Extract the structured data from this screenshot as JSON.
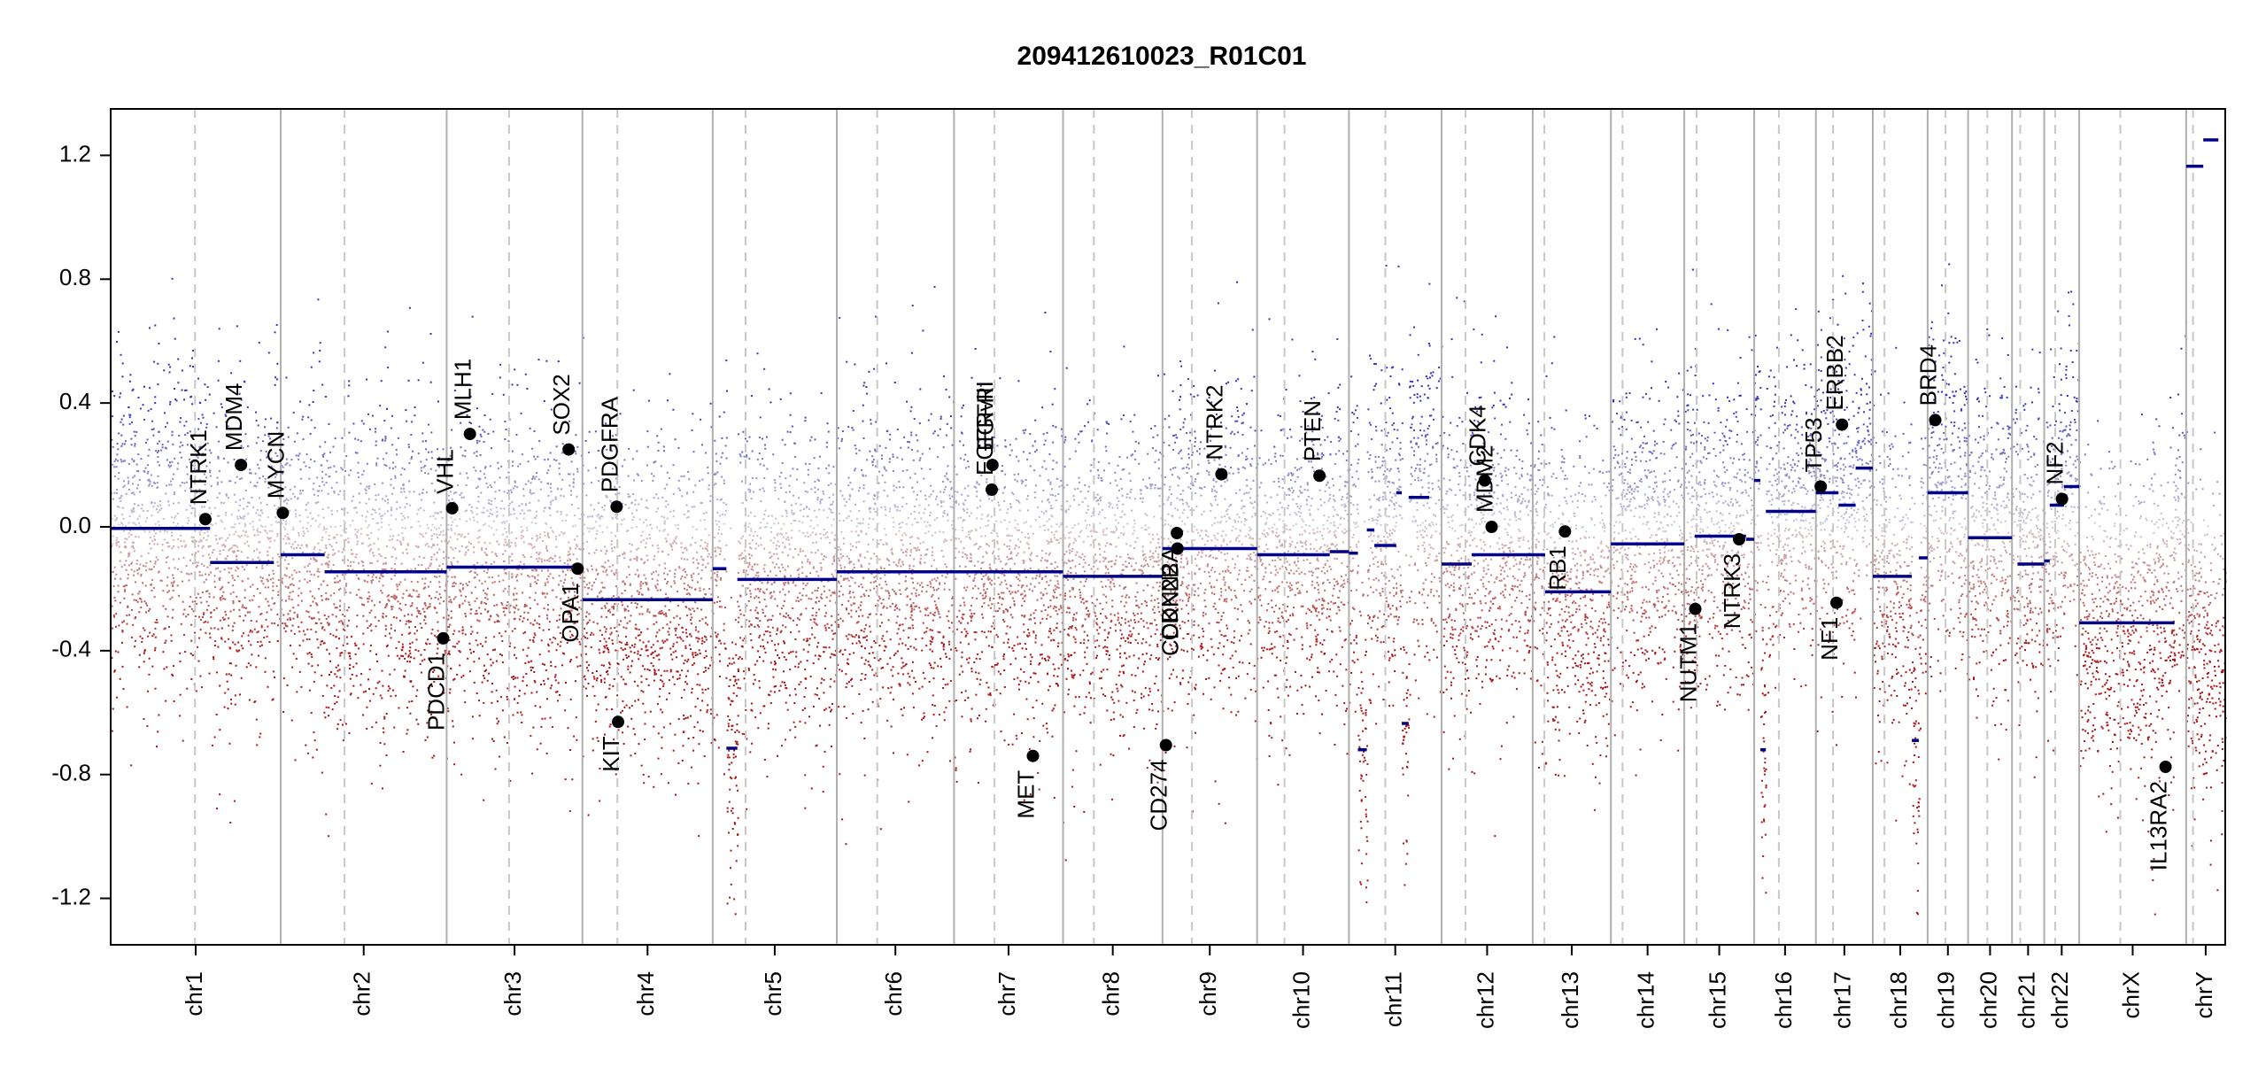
{
  "chart_data": {
    "type": "scatter",
    "title": "209412610023_R01C01",
    "xlabel": "",
    "ylabel": "",
    "ylim": [
      -1.35,
      1.35
    ],
    "y_ticks": [
      -1.2,
      -0.8,
      -0.4,
      0.0,
      0.4,
      0.8,
      1.2
    ],
    "y_tick_labels": [
      "-1.2",
      "-0.8",
      "-0.4",
      "0.0",
      "0.4",
      "0.8",
      "1.2"
    ],
    "colors": {
      "gain_points": "#3b3bb8",
      "loss_points": "#b22222",
      "segment": "#00008b",
      "gene_marker": "#000000",
      "chrom_boundary": "#b0b0b0",
      "centromere": "#c8c8c8"
    },
    "chromosomes": [
      {
        "name": "chr1",
        "start": 0,
        "end": 248,
        "cen": 123
      },
      {
        "name": "chr2",
        "start": 248,
        "end": 490,
        "cen": 341
      },
      {
        "name": "chr3",
        "start": 490,
        "end": 688,
        "cen": 581
      },
      {
        "name": "chr4",
        "start": 688,
        "end": 878,
        "cen": 739
      },
      {
        "name": "chr5",
        "start": 878,
        "end": 1059,
        "cen": 926
      },
      {
        "name": "chr6",
        "start": 1059,
        "end": 1230,
        "cen": 1118
      },
      {
        "name": "chr7",
        "start": 1230,
        "end": 1389,
        "cen": 1289
      },
      {
        "name": "chr8",
        "start": 1389,
        "end": 1534,
        "cen": 1434
      },
      {
        "name": "chr9",
        "start": 1534,
        "end": 1672,
        "cen": 1577
      },
      {
        "name": "chr10",
        "start": 1672,
        "end": 1806,
        "cen": 1712
      },
      {
        "name": "chr11",
        "start": 1806,
        "end": 1941,
        "cen": 1859
      },
      {
        "name": "chr12",
        "start": 1941,
        "end": 2074,
        "cen": 1976
      },
      {
        "name": "chr13",
        "start": 2074,
        "end": 2188,
        "cen": 2091
      },
      {
        "name": "chr14",
        "start": 2188,
        "end": 2295,
        "cen": 2205
      },
      {
        "name": "chr15",
        "start": 2295,
        "end": 2397,
        "cen": 2313
      },
      {
        "name": "chr16",
        "start": 2397,
        "end": 2487,
        "cen": 2433
      },
      {
        "name": "chr17",
        "start": 2487,
        "end": 2570,
        "cen": 2512
      },
      {
        "name": "chr18",
        "start": 2570,
        "end": 2650,
        "cen": 2587
      },
      {
        "name": "chr19",
        "start": 2650,
        "end": 2709,
        "cen": 2676
      },
      {
        "name": "chr20",
        "start": 2709,
        "end": 2773,
        "cen": 2737
      },
      {
        "name": "chr21",
        "start": 2773,
        "end": 2820,
        "cen": 2785
      },
      {
        "name": "chr22",
        "start": 2820,
        "end": 2871,
        "cen": 2836
      },
      {
        "name": "chrX",
        "start": 2871,
        "end": 3027,
        "cen": 2931
      },
      {
        "name": "chrY",
        "start": 3027,
        "end": 3084,
        "cen": 3037
      }
    ],
    "segments": [
      {
        "x0": 0,
        "x1": 145,
        "y": -0.005
      },
      {
        "x0": 145,
        "x1": 238,
        "y": -0.115
      },
      {
        "x0": 248,
        "x1": 312,
        "y": -0.09
      },
      {
        "x0": 312,
        "x1": 490,
        "y": -0.145
      },
      {
        "x0": 490,
        "x1": 688,
        "y": -0.13
      },
      {
        "x0": 688,
        "x1": 878,
        "y": -0.235
      },
      {
        "x0": 878,
        "x1": 898,
        "y": -0.135
      },
      {
        "x0": 898,
        "x1": 914,
        "y": -0.715
      },
      {
        "x0": 914,
        "x1": 1059,
        "y": -0.17
      },
      {
        "x0": 1059,
        "x1": 1389,
        "y": -0.145
      },
      {
        "x0": 1389,
        "x1": 1534,
        "y": -0.16
      },
      {
        "x0": 1534,
        "x1": 1672,
        "y": -0.07
      },
      {
        "x0": 1672,
        "x1": 1778,
        "y": -0.09
      },
      {
        "x0": 1778,
        "x1": 1806,
        "y": -0.08
      },
      {
        "x0": 1806,
        "x1": 1819,
        "y": -0.085
      },
      {
        "x0": 1819,
        "x1": 1832,
        "y": -0.72
      },
      {
        "x0": 1832,
        "x1": 1843,
        "y": -0.01
      },
      {
        "x0": 1843,
        "x1": 1875,
        "y": -0.06
      },
      {
        "x0": 1875,
        "x1": 1883,
        "y": 0.11
      },
      {
        "x0": 1883,
        "x1": 1893,
        "y": -0.635
      },
      {
        "x0": 1893,
        "x1": 1923,
        "y": 0.095
      },
      {
        "x0": 1941,
        "x1": 1985,
        "y": -0.12
      },
      {
        "x0": 1985,
        "x1": 2074,
        "y": -0.09
      },
      {
        "x0": 2074,
        "x1": 2092,
        "y": -0.09
      },
      {
        "x0": 2092,
        "x1": 2188,
        "y": -0.21
      },
      {
        "x0": 2188,
        "x1": 2295,
        "y": -0.055
      },
      {
        "x0": 2310,
        "x1": 2385,
        "y": -0.03
      },
      {
        "x0": 2385,
        "x1": 2397,
        "y": -0.04
      },
      {
        "x0": 2397,
        "x1": 2406,
        "y": 0.15
      },
      {
        "x0": 2406,
        "x1": 2414,
        "y": -0.72
      },
      {
        "x0": 2414,
        "x1": 2487,
        "y": 0.05
      },
      {
        "x0": 2487,
        "x1": 2520,
        "y": 0.11
      },
      {
        "x0": 2520,
        "x1": 2545,
        "y": 0.07
      },
      {
        "x0": 2545,
        "x1": 2570,
        "y": 0.19
      },
      {
        "x0": 2570,
        "x1": 2627,
        "y": -0.16
      },
      {
        "x0": 2627,
        "x1": 2637,
        "y": -0.69
      },
      {
        "x0": 2637,
        "x1": 2650,
        "y": -0.1
      },
      {
        "x0": 2650,
        "x1": 2709,
        "y": 0.11
      },
      {
        "x0": 2709,
        "x1": 2773,
        "y": -0.035
      },
      {
        "x0": 2781,
        "x1": 2820,
        "y": -0.12
      },
      {
        "x0": 2820,
        "x1": 2828,
        "y": -0.11
      },
      {
        "x0": 2828,
        "x1": 2849,
        "y": 0.07
      },
      {
        "x0": 2849,
        "x1": 2871,
        "y": 0.13
      },
      {
        "x0": 2871,
        "x1": 3010,
        "y": -0.31
      },
      {
        "x0": 3027,
        "x1": 3052,
        "y": 1.165
      },
      {
        "x0": 3052,
        "x1": 3074,
        "y": 1.25
      }
    ],
    "genes": [
      {
        "name": "NTRK1",
        "x": 138,
        "y": 0.025
      },
      {
        "name": "MDM4",
        "x": 190,
        "y": 0.2
      },
      {
        "name": "MYCN",
        "x": 251,
        "y": 0.045
      },
      {
        "name": "PDCD1",
        "x": 485,
        "y": -0.36
      },
      {
        "name": "VHL",
        "x": 498,
        "y": 0.06
      },
      {
        "name": "MLH1",
        "x": 524,
        "y": 0.3
      },
      {
        "name": "SOX2",
        "x": 668,
        "y": 0.25
      },
      {
        "name": "OPA1",
        "x": 681,
        "y": -0.135
      },
      {
        "name": "PDGFRA",
        "x": 738,
        "y": 0.065
      },
      {
        "name": "KIT",
        "x": 740,
        "y": -0.63
      },
      {
        "name": "EGFRvIII",
        "x": 1285,
        "y": 0.12
      },
      {
        "name": "EGFR",
        "x": 1286,
        "y": 0.2
      },
      {
        "name": "MET",
        "x": 1345,
        "y": -0.74
      },
      {
        "name": "CD274",
        "x": 1539,
        "y": -0.705
      },
      {
        "name": "CDKN2A",
        "x": 1555,
        "y": -0.02
      },
      {
        "name": "CDKN2B",
        "x": 1556,
        "y": -0.07
      },
      {
        "name": "NTRK2",
        "x": 1620,
        "y": 0.17
      },
      {
        "name": "PTEN",
        "x": 1763,
        "y": 0.165
      },
      {
        "name": "CDK4",
        "x": 2004,
        "y": 0.15
      },
      {
        "name": "MDM2",
        "x": 2014,
        "y": 0.0
      },
      {
        "name": "RB1",
        "x": 2121,
        "y": -0.015
      },
      {
        "name": "NUTM1",
        "x": 2311,
        "y": -0.265
      },
      {
        "name": "NTRK3",
        "x": 2375,
        "y": -0.04
      },
      {
        "name": "TP53",
        "x": 2494,
        "y": 0.13
      },
      {
        "name": "NF1",
        "x": 2517,
        "y": -0.245
      },
      {
        "name": "ERBB2",
        "x": 2525,
        "y": 0.33
      },
      {
        "name": "BRD4",
        "x": 2661,
        "y": 0.345
      },
      {
        "name": "NF2",
        "x": 2846,
        "y": 0.09
      },
      {
        "name": "IL13RA2",
        "x": 2997,
        "y": -0.775
      }
    ],
    "grid": false,
    "legend": "none"
  }
}
